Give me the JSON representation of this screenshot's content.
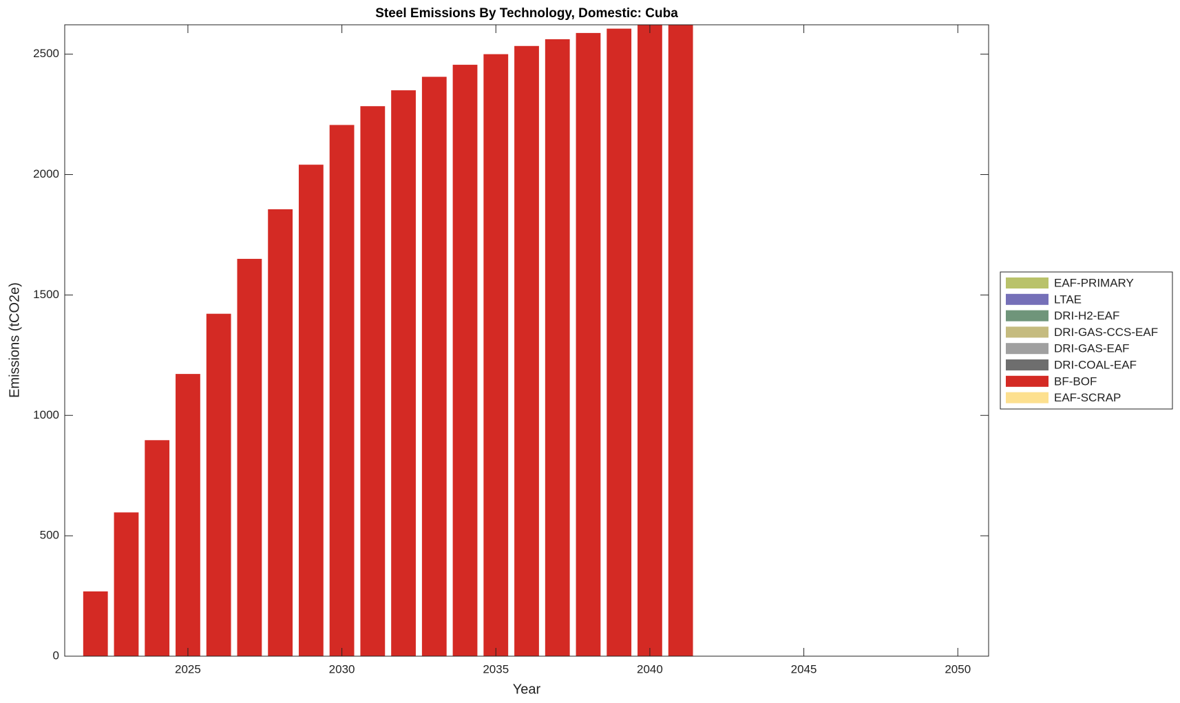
{
  "chart_data": {
    "type": "bar",
    "stacked": true,
    "title": "Steel Emissions By Technology, Domestic: Cuba",
    "xlabel": "Year",
    "ylabel": "Emissions (tCO2e)",
    "x": [
      2022,
      2023,
      2024,
      2025,
      2026,
      2027,
      2028,
      2029,
      2030,
      2031,
      2032,
      2033,
      2034,
      2035,
      2036,
      2037,
      2038,
      2039,
      2040,
      2041
    ],
    "series": [
      {
        "name": "EAF-PRIMARY",
        "color": "#b9c26a",
        "values": [
          0,
          0,
          0,
          0,
          0,
          0,
          0,
          0,
          0,
          0,
          0,
          0,
          0,
          0,
          0,
          0,
          0,
          0,
          0,
          0
        ]
      },
      {
        "name": "LTAE",
        "color": "#7570b8",
        "values": [
          0,
          0,
          0,
          0,
          0,
          0,
          0,
          0,
          0,
          0,
          0,
          0,
          0,
          0,
          0,
          0,
          0,
          0,
          0,
          0
        ]
      },
      {
        "name": "DRI-H2-EAF",
        "color": "#6f957a",
        "values": [
          0,
          0,
          0,
          0,
          0,
          0,
          0,
          0,
          0,
          0,
          0,
          0,
          0,
          0,
          0,
          0,
          0,
          0,
          0,
          0
        ]
      },
      {
        "name": "DRI-GAS-CCS-EAF",
        "color": "#c5bb7f",
        "values": [
          0,
          0,
          0,
          0,
          0,
          0,
          0,
          0,
          0,
          0,
          0,
          0,
          0,
          0,
          0,
          0,
          0,
          0,
          0,
          0
        ]
      },
      {
        "name": "DRI-GAS-EAF",
        "color": "#a0a0a0",
        "values": [
          0,
          0,
          0,
          0,
          0,
          0,
          0,
          0,
          0,
          0,
          0,
          0,
          0,
          0,
          0,
          0,
          0,
          0,
          0,
          0
        ]
      },
      {
        "name": "DRI-COAL-EAF",
        "color": "#6e6e6e",
        "values": [
          0,
          0,
          0,
          0,
          0,
          0,
          0,
          0,
          0,
          0,
          0,
          0,
          0,
          0,
          0,
          0,
          0,
          0,
          0,
          0
        ]
      },
      {
        "name": "BF-BOF",
        "color": "#d42a24",
        "values": [
          269,
          597,
          897,
          1172,
          1422,
          1650,
          1856,
          2041,
          2206,
          2284,
          2350,
          2406,
          2456,
          2500,
          2534,
          2562,
          2588,
          2606,
          2630,
          2650
        ]
      },
      {
        "name": "EAF-SCRAP",
        "color": "#fde08f",
        "values": [
          0,
          0,
          0,
          0,
          0,
          0,
          0,
          0,
          0,
          0,
          0,
          0,
          0,
          0,
          0,
          0,
          0,
          0,
          0,
          0
        ]
      }
    ],
    "xlim": [
      2021,
      2051
    ],
    "xticks": [
      2025,
      2030,
      2035,
      2040,
      2045,
      2050
    ],
    "ylim": [
      0,
      2622
    ],
    "yticks": [
      0,
      500,
      1000,
      1500,
      2000,
      2500
    ],
    "grid": false,
    "legend": "right"
  }
}
